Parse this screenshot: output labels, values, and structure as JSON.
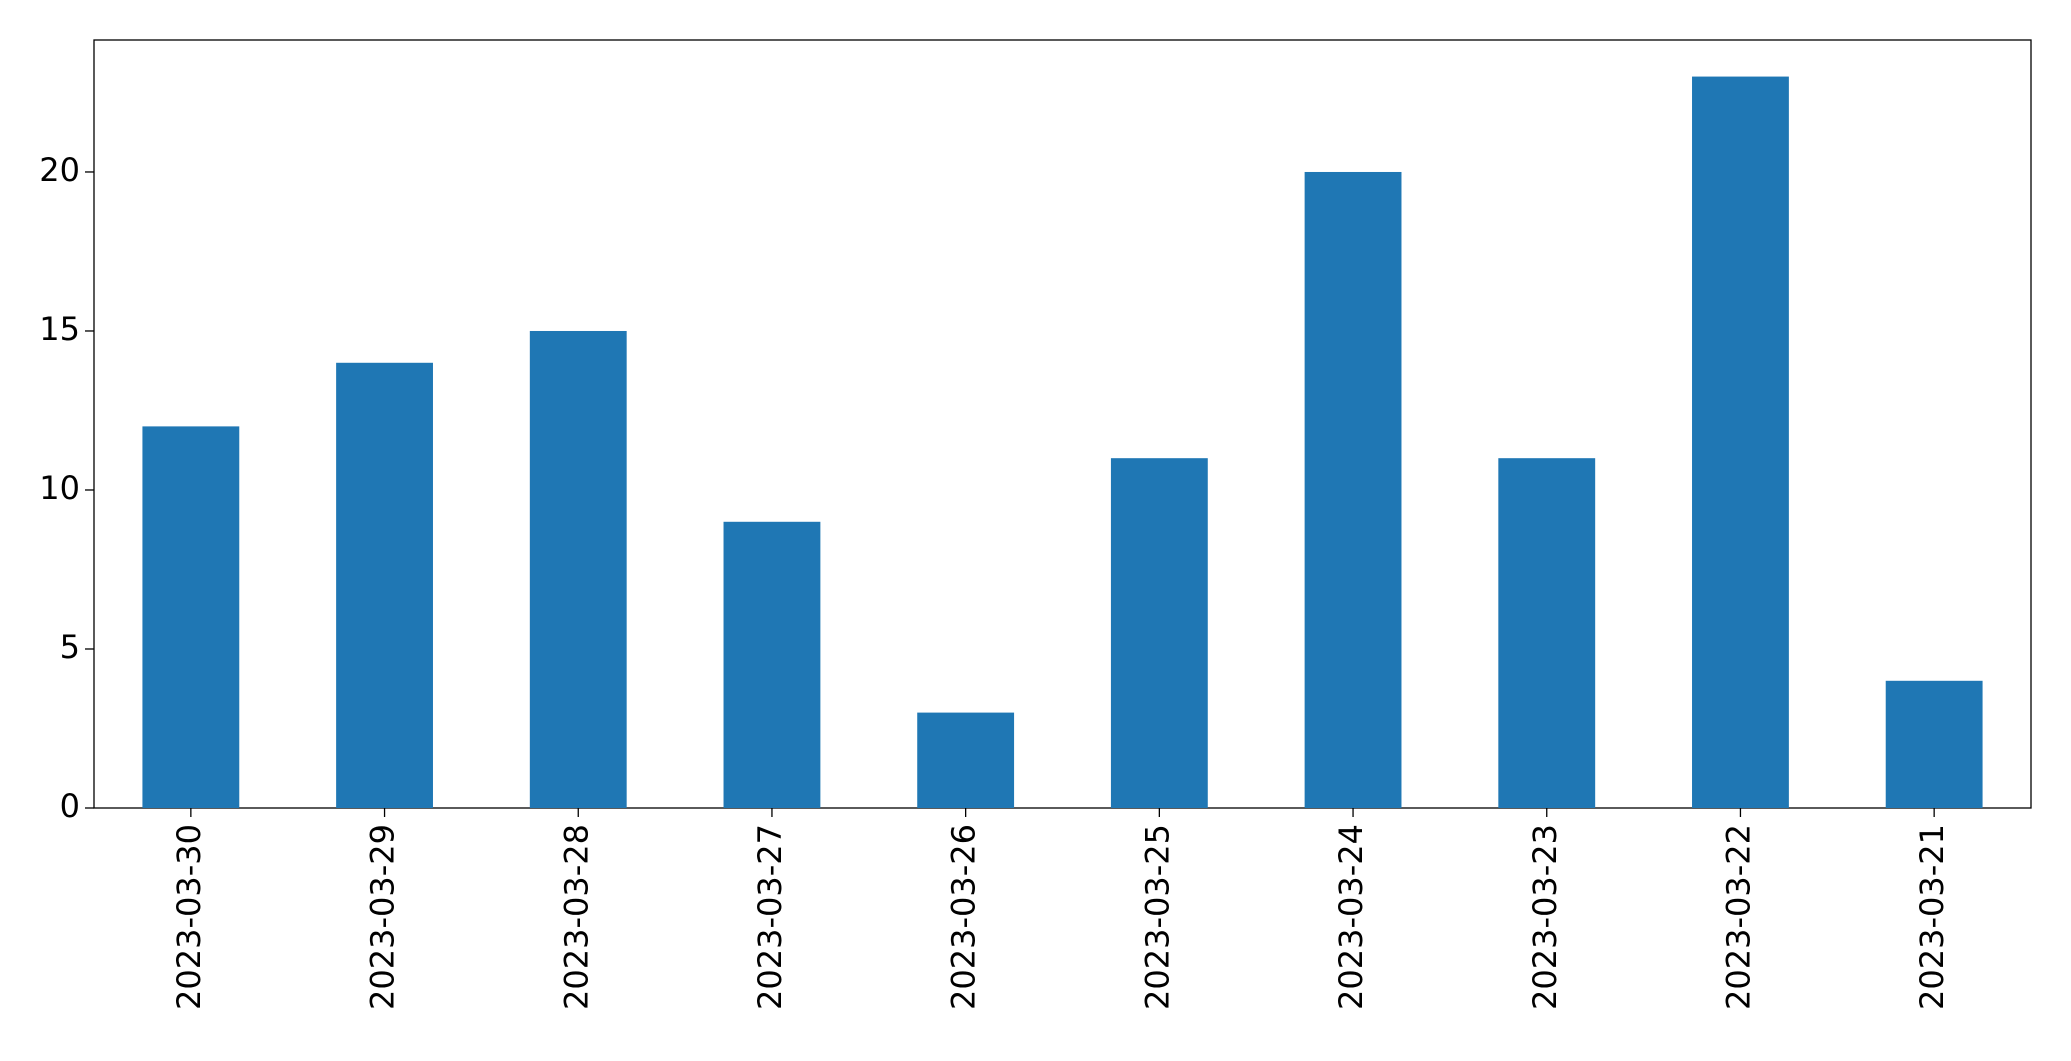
{
  "chart_data": {
    "type": "bar",
    "categories": [
      "2023-03-30",
      "2023-03-29",
      "2023-03-28",
      "2023-03-27",
      "2023-03-26",
      "2023-03-25",
      "2023-03-24",
      "2023-03-23",
      "2023-03-22",
      "2023-03-21"
    ],
    "values": [
      12,
      14,
      15,
      9,
      3,
      11,
      20,
      11,
      23,
      4
    ],
    "color": "#1f77b4",
    "ylim": [
      0,
      24.15
    ],
    "yticks": [
      0,
      5,
      10,
      15,
      20
    ],
    "grid": false
  }
}
